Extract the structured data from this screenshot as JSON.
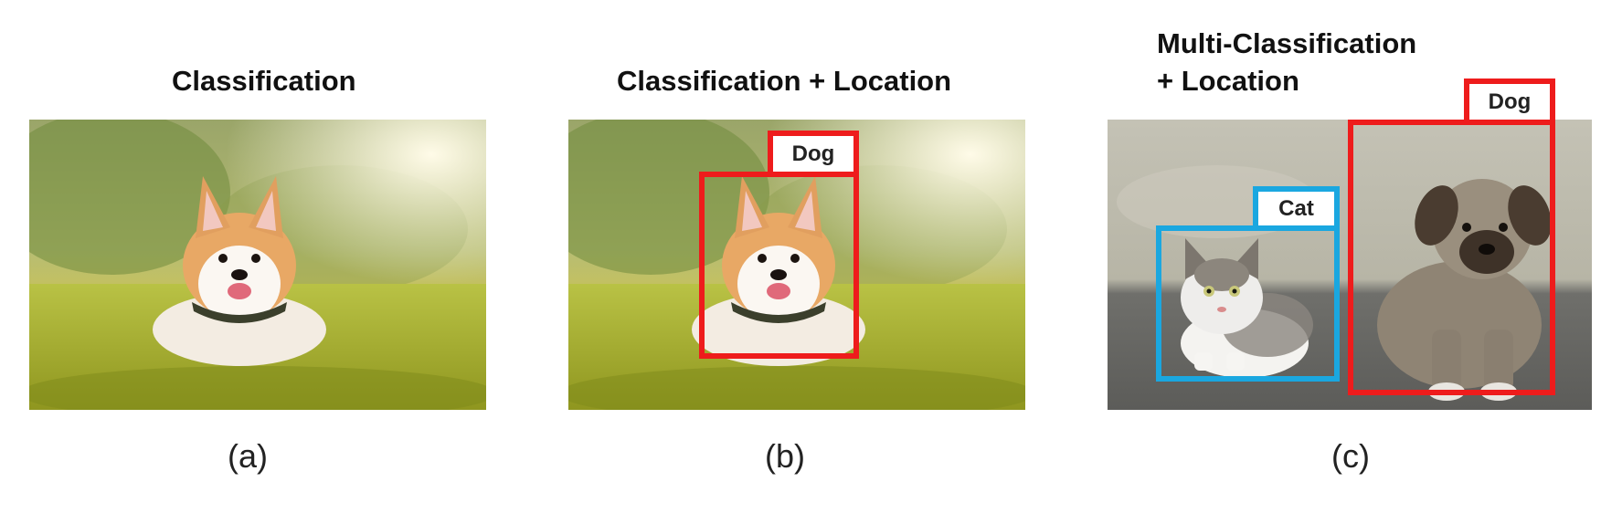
{
  "panels": [
    {
      "title": "Classification",
      "caption": "(a)"
    },
    {
      "title": "Classification + Location",
      "caption": "(b)",
      "labels": [
        "Dog"
      ]
    },
    {
      "title_lines": [
        "Multi-Classification",
        "+ Location"
      ],
      "caption": "(c)",
      "labels": [
        "Dog",
        "Cat"
      ]
    }
  ],
  "colors": {
    "dog_box": "#ee1c1c",
    "cat_box": "#1aa7e0"
  }
}
